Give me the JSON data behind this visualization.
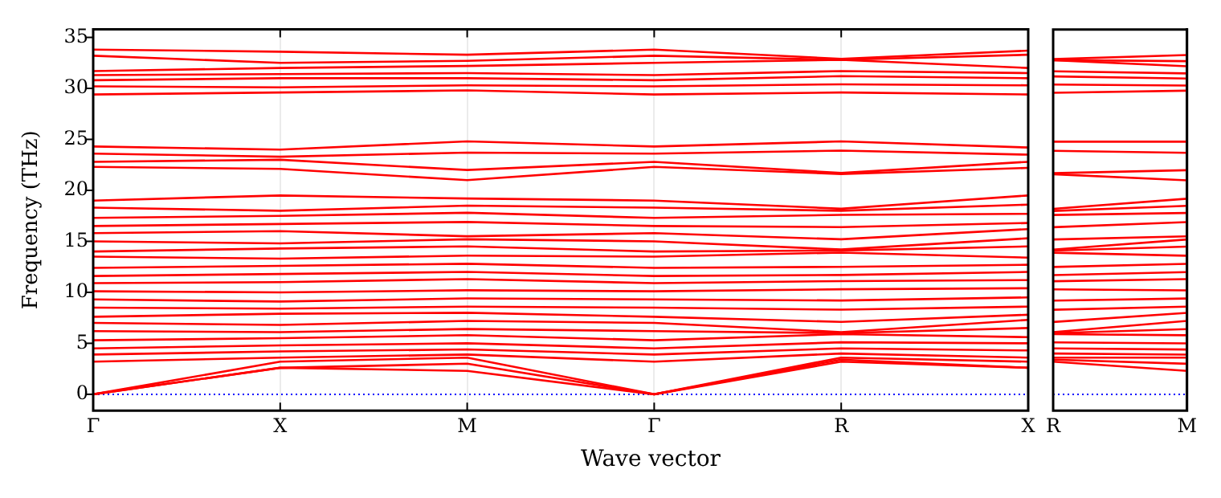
{
  "chart_data": [
    {
      "type": "line",
      "ylabel": "Frequency (THz)",
      "xlabel": "Wave vector",
      "categories": [
        "Γ",
        "X",
        "M",
        "Γ",
        "R",
        "X"
      ],
      "ylim": [
        -1.6,
        35.8
      ],
      "yticks": [
        0,
        5,
        10,
        15,
        20,
        25,
        30,
        35
      ],
      "grid": "x",
      "legend": false,
      "ref_lines": [
        {
          "axis": "y",
          "value": 0,
          "color": "#0000ff",
          "line_style": "dotted"
        }
      ],
      "series": [
        {
          "color": "#ff0000",
          "values": [
            0,
            2.6,
            2.3,
            0,
            3.2,
            2.6
          ]
        },
        {
          "color": "#ff0000",
          "values": [
            0,
            2.6,
            3.0,
            0,
            3.4,
            2.6
          ]
        },
        {
          "color": "#ff0000",
          "values": [
            0,
            3.2,
            3.6,
            0,
            3.6,
            3.2
          ]
        },
        {
          "color": "#ff0000",
          "values": [
            3.2,
            3.6,
            3.9,
            3.2,
            4.0,
            3.6
          ]
        },
        {
          "color": "#ff0000",
          "values": [
            3.9,
            4.2,
            4.4,
            3.9,
            4.5,
            4.3
          ]
        },
        {
          "color": "#ff0000",
          "values": [
            4.5,
            4.8,
            5.0,
            4.5,
            5.1,
            5.0
          ]
        },
        {
          "color": "#ff0000",
          "values": [
            5.3,
            5.5,
            5.8,
            5.3,
            5.9,
            5.6
          ]
        },
        {
          "color": "#ff0000",
          "values": [
            6.2,
            6.1,
            6.4,
            6.2,
            6.0,
            6.5
          ]
        },
        {
          "color": "#ff0000",
          "values": [
            7.0,
            6.8,
            7.2,
            7.0,
            6.1,
            7.3
          ]
        },
        {
          "color": "#ff0000",
          "values": [
            7.6,
            7.9,
            8.0,
            7.6,
            7.1,
            7.8
          ]
        },
        {
          "color": "#ff0000",
          "values": [
            8.5,
            8.4,
            8.6,
            8.5,
            8.3,
            8.6
          ]
        },
        {
          "color": "#ff0000",
          "values": [
            9.3,
            9.1,
            9.4,
            9.3,
            9.2,
            9.5
          ]
        },
        {
          "color": "#ff0000",
          "values": [
            10.1,
            10.0,
            10.2,
            10.1,
            10.3,
            10.4
          ]
        },
        {
          "color": "#ff0000",
          "values": [
            10.9,
            11.0,
            11.3,
            10.9,
            11.1,
            11.2
          ]
        },
        {
          "color": "#ff0000",
          "values": [
            11.6,
            11.8,
            12.0,
            11.6,
            11.7,
            12.0
          ]
        },
        {
          "color": "#ff0000",
          "values": [
            12.4,
            12.6,
            12.8,
            12.4,
            12.5,
            12.7
          ]
        },
        {
          "color": "#ff0000",
          "values": [
            13.5,
            13.3,
            13.6,
            13.5,
            13.9,
            13.4
          ]
        },
        {
          "color": "#ff0000",
          "values": [
            14.0,
            14.3,
            14.5,
            14.0,
            14.1,
            14.5
          ]
        },
        {
          "color": "#ff0000",
          "values": [
            15.0,
            14.8,
            15.2,
            15.0,
            14.2,
            15.3
          ]
        },
        {
          "color": "#ff0000",
          "values": [
            15.8,
            16.0,
            15.5,
            15.8,
            15.2,
            16.2
          ]
        },
        {
          "color": "#ff0000",
          "values": [
            16.5,
            16.7,
            16.9,
            16.5,
            16.4,
            16.8
          ]
        },
        {
          "color": "#ff0000",
          "values": [
            17.3,
            17.5,
            17.8,
            17.3,
            17.6,
            17.7
          ]
        },
        {
          "color": "#ff0000",
          "values": [
            18.3,
            18.0,
            18.5,
            18.3,
            18.0,
            18.6
          ]
        },
        {
          "color": "#ff0000",
          "values": [
            19.0,
            19.5,
            19.2,
            19.0,
            18.2,
            19.5
          ]
        },
        {
          "color": "#ff0000",
          "values": [
            22.3,
            22.1,
            21.0,
            22.3,
            21.6,
            22.2
          ]
        },
        {
          "color": "#ff0000",
          "values": [
            22.8,
            23.0,
            22.0,
            22.8,
            21.7,
            22.8
          ]
        },
        {
          "color": "#ff0000",
          "values": [
            23.6,
            23.3,
            23.7,
            23.6,
            23.9,
            23.5
          ]
        },
        {
          "color": "#ff0000",
          "values": [
            24.3,
            24.0,
            24.8,
            24.3,
            24.8,
            24.2
          ]
        },
        {
          "color": "#ff0000",
          "values": [
            29.4,
            29.6,
            29.8,
            29.4,
            29.6,
            29.4
          ]
        },
        {
          "color": "#ff0000",
          "values": [
            30.2,
            30.1,
            30.3,
            30.2,
            30.4,
            30.3
          ]
        },
        {
          "color": "#ff0000",
          "values": [
            30.8,
            31.0,
            31.0,
            30.8,
            31.2,
            31.0
          ]
        },
        {
          "color": "#ff0000",
          "values": [
            31.3,
            31.4,
            31.5,
            31.3,
            31.7,
            31.5
          ]
        },
        {
          "color": "#ff0000",
          "values": [
            31.7,
            32.0,
            32.2,
            32.5,
            32.8,
            32.0
          ]
        },
        {
          "color": "#ff0000",
          "values": [
            33.2,
            32.5,
            32.7,
            33.2,
            32.8,
            33.3
          ]
        },
        {
          "color": "#ff0000",
          "values": [
            33.8,
            33.6,
            33.3,
            33.8,
            32.9,
            33.7
          ]
        }
      ]
    },
    {
      "type": "line",
      "categories": [
        "R",
        "M"
      ],
      "ylim": [
        -1.6,
        35.8
      ],
      "yticks": [
        0,
        5,
        10,
        15,
        20,
        25,
        30,
        35
      ],
      "tick_labels": "x",
      "legend": false,
      "ref_lines": [
        {
          "axis": "y",
          "value": 0,
          "color": "#0000ff",
          "line_style": "dotted"
        }
      ],
      "series": [
        {
          "color": "#ff0000",
          "values": [
            3.2,
            2.3
          ]
        },
        {
          "color": "#ff0000",
          "values": [
            3.4,
            3.0
          ]
        },
        {
          "color": "#ff0000",
          "values": [
            3.6,
            3.6
          ]
        },
        {
          "color": "#ff0000",
          "values": [
            4.0,
            3.9
          ]
        },
        {
          "color": "#ff0000",
          "values": [
            4.5,
            4.4
          ]
        },
        {
          "color": "#ff0000",
          "values": [
            5.1,
            5.0
          ]
        },
        {
          "color": "#ff0000",
          "values": [
            5.9,
            5.8
          ]
        },
        {
          "color": "#ff0000",
          "values": [
            6.0,
            6.4
          ]
        },
        {
          "color": "#ff0000",
          "values": [
            6.1,
            7.2
          ]
        },
        {
          "color": "#ff0000",
          "values": [
            7.1,
            8.0
          ]
        },
        {
          "color": "#ff0000",
          "values": [
            8.3,
            8.6
          ]
        },
        {
          "color": "#ff0000",
          "values": [
            9.2,
            9.4
          ]
        },
        {
          "color": "#ff0000",
          "values": [
            10.3,
            10.2
          ]
        },
        {
          "color": "#ff0000",
          "values": [
            11.1,
            11.3
          ]
        },
        {
          "color": "#ff0000",
          "values": [
            11.7,
            12.0
          ]
        },
        {
          "color": "#ff0000",
          "values": [
            12.5,
            12.8
          ]
        },
        {
          "color": "#ff0000",
          "values": [
            13.9,
            13.6
          ]
        },
        {
          "color": "#ff0000",
          "values": [
            14.1,
            14.5
          ]
        },
        {
          "color": "#ff0000",
          "values": [
            14.2,
            15.2
          ]
        },
        {
          "color": "#ff0000",
          "values": [
            15.2,
            15.5
          ]
        },
        {
          "color": "#ff0000",
          "values": [
            16.4,
            16.9
          ]
        },
        {
          "color": "#ff0000",
          "values": [
            17.6,
            17.8
          ]
        },
        {
          "color": "#ff0000",
          "values": [
            18.0,
            18.5
          ]
        },
        {
          "color": "#ff0000",
          "values": [
            18.2,
            19.2
          ]
        },
        {
          "color": "#ff0000",
          "values": [
            21.6,
            21.0
          ]
        },
        {
          "color": "#ff0000",
          "values": [
            21.7,
            22.0
          ]
        },
        {
          "color": "#ff0000",
          "values": [
            23.9,
            23.7
          ]
        },
        {
          "color": "#ff0000",
          "values": [
            24.8,
            24.8
          ]
        },
        {
          "color": "#ff0000",
          "values": [
            29.6,
            29.8
          ]
        },
        {
          "color": "#ff0000",
          "values": [
            30.4,
            30.3
          ]
        },
        {
          "color": "#ff0000",
          "values": [
            31.2,
            31.0
          ]
        },
        {
          "color": "#ff0000",
          "values": [
            31.7,
            31.5
          ]
        },
        {
          "color": "#ff0000",
          "values": [
            32.8,
            32.2
          ]
        },
        {
          "color": "#ff0000",
          "values": [
            32.8,
            32.7
          ]
        },
        {
          "color": "#ff0000",
          "values": [
            32.9,
            33.3
          ]
        }
      ]
    }
  ]
}
